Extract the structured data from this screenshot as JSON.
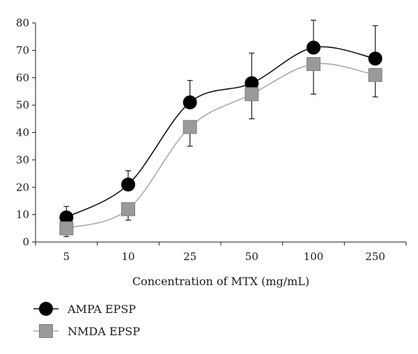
{
  "chart_data": {
    "type": "line",
    "title": "",
    "xlabel": "Concentration of MTX (mg/mL)",
    "ylabel": "",
    "categories": [
      "5",
      "10",
      "25",
      "50",
      "100",
      "250"
    ],
    "ylim": [
      0,
      80
    ],
    "yticks": [
      0,
      10,
      20,
      30,
      40,
      50,
      60,
      70,
      80
    ],
    "grid": false,
    "legend_position": "bottom-left",
    "series": [
      {
        "name": "AMPA EPSP",
        "marker": "circle",
        "color": "#000000",
        "line_color": "#111111",
        "values": [
          9,
          21,
          51,
          58,
          71,
          67
        ],
        "error_upper": [
          13,
          26,
          59,
          69,
          81,
          79
        ],
        "error_lower": [
          null,
          null,
          null,
          null,
          null,
          null
        ]
      },
      {
        "name": "NMDA EPSP",
        "marker": "square",
        "color": "#9a9a9a",
        "line_color": "#aaaaaa",
        "values": [
          5,
          12,
          42,
          54,
          65,
          61
        ],
        "error_upper": [
          null,
          null,
          null,
          null,
          null,
          null
        ],
        "error_lower": [
          2,
          8,
          35,
          45,
          54,
          53
        ]
      }
    ]
  }
}
